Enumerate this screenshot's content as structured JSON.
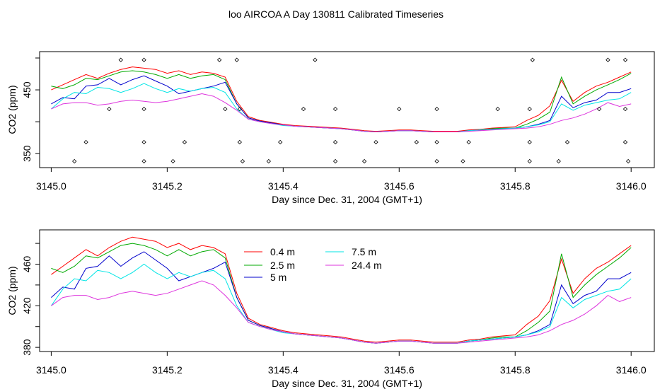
{
  "title": "loo AIRCOA A  Day 130811  Calibrated Timeseries",
  "colors": {
    "0.4 m": "#ff0000",
    "2.5 m": "#00aa00",
    "5 m": "#0000cc",
    "7.5 m": "#00e5e5",
    "24.4 m": "#dd33dd"
  },
  "chart_data": [
    {
      "type": "line",
      "panel": "top",
      "xlabel": "Day since Dec. 31, 2004 (GMT+1)",
      "ylabel": "CO2 (ppm)",
      "xlim": [
        3144.98,
        3146.04
      ],
      "ylim": [
        328,
        510
      ],
      "xticks": [
        "3145.0",
        "3145.2",
        "3145.4",
        "3145.6",
        "3145.8",
        "3146.0"
      ],
      "yticks": [
        "350",
        "450"
      ],
      "markers_note": "diamond markers along flag rows",
      "marker_rows": [
        {
          "y": 497,
          "x": [
            3145.12,
            3145.16,
            3145.29,
            3145.32,
            3145.455,
            3145.83,
            3145.96,
            3145.99
          ]
        },
        {
          "y": 420,
          "x": [
            3145.1,
            3145.16,
            3145.3,
            3145.325,
            3145.435,
            3145.49,
            3145.6,
            3145.665,
            3145.77,
            3145.825,
            3145.945,
            3145.99
          ]
        },
        {
          "y": 368,
          "x": [
            3145.06,
            3145.16,
            3145.23,
            3145.325,
            3145.395,
            3145.49,
            3145.56,
            3145.63,
            3145.665,
            3145.72,
            3145.825,
            3145.89,
            3145.99
          ]
        },
        {
          "y": 338,
          "x": [
            3145.04,
            3145.16,
            3145.21,
            3145.33,
            3145.375,
            3145.49,
            3145.54,
            3145.665,
            3145.71,
            3145.825,
            3145.875,
            3145.995
          ]
        }
      ]
    },
    {
      "type": "line",
      "panel": "bottom",
      "xlabel": "Day since Dec. 31, 2004 (GMT+1)",
      "ylabel": "CO2 (ppm)",
      "xlim": [
        3144.98,
        3146.04
      ],
      "ylim": [
        376,
        493
      ],
      "xticks": [
        "3145.0",
        "3145.2",
        "3145.4",
        "3145.6",
        "3145.8",
        "3146.0"
      ],
      "yticks": [
        "380",
        "420",
        "460"
      ],
      "legend": [
        "0.4 m",
        "2.5 m",
        "5 m",
        "7.5 m",
        "24.4 m"
      ],
      "legend_position": "top-center",
      "x": [
        3145.0,
        3145.02,
        3145.04,
        3145.06,
        3145.08,
        3145.1,
        3145.12,
        3145.14,
        3145.16,
        3145.18,
        3145.2,
        3145.22,
        3145.24,
        3145.26,
        3145.28,
        3145.3,
        3145.32,
        3145.34,
        3145.36,
        3145.38,
        3145.4,
        3145.42,
        3145.44,
        3145.46,
        3145.48,
        3145.5,
        3145.52,
        3145.54,
        3145.56,
        3145.58,
        3145.6,
        3145.62,
        3145.64,
        3145.66,
        3145.68,
        3145.7,
        3145.72,
        3145.74,
        3145.76,
        3145.78,
        3145.8,
        3145.82,
        3145.84,
        3145.86,
        3145.88,
        3145.9,
        3145.92,
        3145.94,
        3145.96,
        3145.98,
        3146.0
      ],
      "series": [
        {
          "name": "0.4 m",
          "values": [
            450,
            458,
            466,
            474,
            468,
            476,
            482,
            486,
            484,
            482,
            476,
            480,
            474,
            478,
            476,
            470,
            432,
            408,
            402,
            399,
            396,
            394,
            393,
            392,
            391,
            390,
            388,
            386,
            385,
            386,
            387,
            387,
            386,
            385,
            385,
            385,
            387,
            388,
            390,
            391,
            392,
            402,
            410,
            425,
            465,
            432,
            446,
            456,
            462,
            470,
            478
          ]
        },
        {
          "name": "2.5 m",
          "values": [
            456,
            452,
            458,
            468,
            466,
            472,
            478,
            480,
            478,
            474,
            468,
            474,
            468,
            472,
            474,
            466,
            428,
            406,
            401,
            398,
            395,
            393,
            392,
            391,
            390,
            389,
            387,
            385,
            384,
            385,
            386,
            386,
            385,
            384,
            384,
            384,
            386,
            387,
            389,
            390,
            390,
            396,
            404,
            415,
            470,
            428,
            440,
            450,
            458,
            466,
            476
          ]
        },
        {
          "name": "5 m",
          "values": [
            428,
            438,
            436,
            456,
            458,
            468,
            458,
            466,
            472,
            464,
            456,
            444,
            448,
            452,
            456,
            462,
            428,
            406,
            401,
            398,
            395,
            393,
            392,
            391,
            390,
            389,
            387,
            385,
            384,
            385,
            386,
            386,
            385,
            384,
            384,
            384,
            386,
            387,
            388,
            389,
            390,
            392,
            396,
            402,
            440,
            422,
            430,
            434,
            446,
            446,
            452
          ]
        },
        {
          "name": "7.5 m",
          "values": [
            420,
            436,
            446,
            444,
            454,
            452,
            446,
            452,
            460,
            452,
            446,
            452,
            448,
            452,
            454,
            446,
            420,
            404,
            400,
            397,
            394,
            393,
            392,
            391,
            390,
            389,
            387,
            385,
            384,
            385,
            386,
            386,
            385,
            384,
            384,
            384,
            386,
            387,
            388,
            389,
            390,
            392,
            395,
            400,
            428,
            418,
            426,
            430,
            434,
            436,
            446
          ]
        },
        {
          "name": "24.4 m",
          "values": [
            420,
            428,
            430,
            430,
            426,
            428,
            432,
            434,
            432,
            430,
            432,
            436,
            440,
            444,
            440,
            430,
            418,
            404,
            400,
            397,
            395,
            393,
            392,
            391,
            390,
            389,
            387,
            385,
            384,
            385,
            386,
            386,
            385,
            384,
            384,
            384,
            385,
            386,
            387,
            388,
            389,
            390,
            392,
            396,
            402,
            406,
            412,
            420,
            430,
            424,
            428
          ]
        }
      ]
    }
  ]
}
